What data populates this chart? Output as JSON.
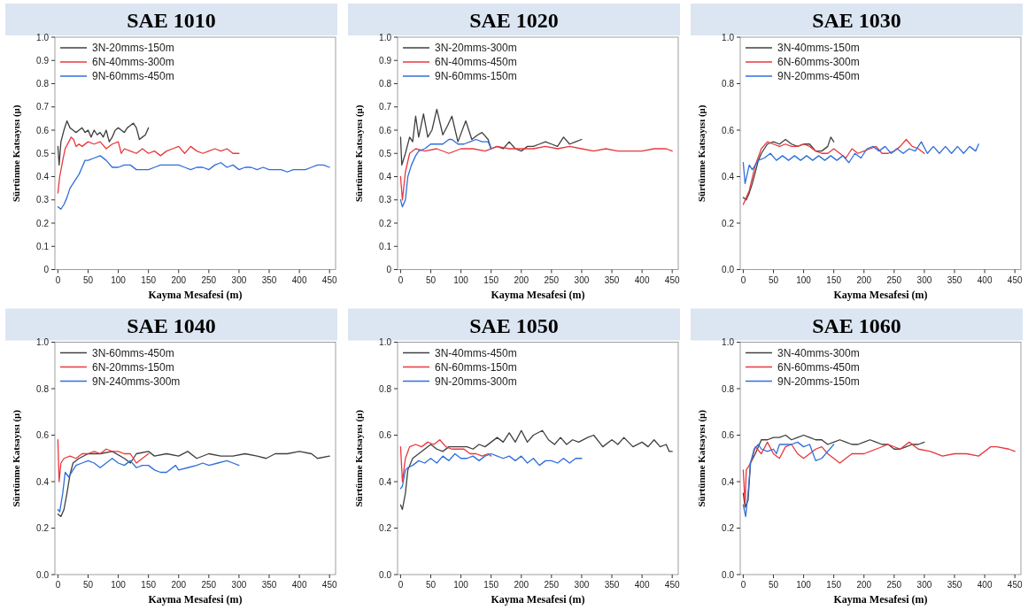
{
  "chart_data": [
    {
      "type": "line",
      "title": "SAE 1010",
      "xlabel": "Kayma Mesafesi (m)",
      "ylabel": "Sürtünme Katsayısı (μ)",
      "xlim": [
        -5,
        460
      ],
      "ylim": [
        0,
        1
      ],
      "xticks": [
        0,
        50,
        100,
        150,
        200,
        250,
        300,
        350,
        400,
        450
      ],
      "yticks": [
        0,
        {
          "value": 0.1,
          "label": "0.1"
        },
        {
          "value": 0.2,
          "label": "0.2"
        },
        {
          "value": 0.3,
          "label": "0.3"
        },
        {
          "value": 0.4,
          "label": "0.4"
        },
        {
          "value": 0.5,
          "label": "0.5"
        },
        {
          "value": 0.6,
          "label": "0.6"
        },
        {
          "value": 0.7,
          "label": "0.7"
        },
        {
          "value": 0.8,
          "label": "0.8"
        },
        {
          "value": 0.9,
          "label": "0.9"
        },
        {
          "value": 1,
          "label": "1.0"
        }
      ],
      "legend": "top left",
      "grid": false,
      "series": [
        {
          "name": "3N-20mms-150m",
          "color": "#404040",
          "x": [
            0,
            2,
            5,
            10,
            15,
            20,
            25,
            30,
            35,
            40,
            45,
            50,
            55,
            60,
            65,
            70,
            75,
            80,
            85,
            90,
            95,
            100,
            105,
            110,
            115,
            120,
            125,
            130,
            135,
            140,
            145,
            150
          ],
          "values": [
            0.53,
            0.45,
            0.55,
            0.6,
            0.64,
            0.61,
            0.6,
            0.59,
            0.6,
            0.61,
            0.59,
            0.6,
            0.57,
            0.6,
            0.58,
            0.59,
            0.57,
            0.6,
            0.55,
            0.57,
            0.6,
            0.61,
            0.6,
            0.59,
            0.61,
            0.62,
            0.63,
            0.61,
            0.56,
            0.57,
            0.58,
            0.61
          ]
        },
        {
          "name": "6N-40mms-300m",
          "color": "#e8383d",
          "x": [
            0,
            3,
            8,
            12,
            18,
            22,
            26,
            30,
            35,
            40,
            50,
            60,
            70,
            80,
            90,
            100,
            105,
            110,
            120,
            130,
            140,
            150,
            160,
            170,
            180,
            190,
            200,
            210,
            220,
            230,
            240,
            250,
            260,
            270,
            280,
            290,
            300
          ],
          "values": [
            0.33,
            0.4,
            0.47,
            0.52,
            0.55,
            0.57,
            0.56,
            0.53,
            0.54,
            0.53,
            0.55,
            0.54,
            0.55,
            0.52,
            0.54,
            0.55,
            0.5,
            0.52,
            0.51,
            0.5,
            0.52,
            0.5,
            0.51,
            0.49,
            0.51,
            0.52,
            0.53,
            0.5,
            0.53,
            0.51,
            0.5,
            0.51,
            0.52,
            0.51,
            0.52,
            0.5,
            0.5
          ]
        },
        {
          "name": "9N-60mms-450m",
          "color": "#2f6fdb",
          "x": [
            0,
            5,
            10,
            15,
            20,
            25,
            30,
            35,
            40,
            45,
            50,
            60,
            70,
            80,
            90,
            100,
            110,
            120,
            130,
            140,
            150,
            160,
            170,
            180,
            190,
            200,
            210,
            220,
            230,
            240,
            250,
            260,
            270,
            280,
            290,
            300,
            310,
            320,
            330,
            340,
            350,
            360,
            370,
            380,
            390,
            400,
            410,
            420,
            430,
            440,
            450
          ],
          "values": [
            0.27,
            0.26,
            0.28,
            0.31,
            0.35,
            0.37,
            0.39,
            0.41,
            0.44,
            0.47,
            0.47,
            0.48,
            0.49,
            0.47,
            0.44,
            0.44,
            0.45,
            0.45,
            0.43,
            0.43,
            0.43,
            0.44,
            0.45,
            0.45,
            0.45,
            0.45,
            0.44,
            0.43,
            0.44,
            0.44,
            0.43,
            0.45,
            0.46,
            0.44,
            0.45,
            0.43,
            0.44,
            0.44,
            0.43,
            0.44,
            0.43,
            0.43,
            0.43,
            0.42,
            0.43,
            0.43,
            0.43,
            0.44,
            0.45,
            0.45,
            0.44
          ]
        }
      ]
    },
    {
      "type": "line",
      "title": "SAE 1020",
      "xlabel": "Kayma Mesafesi (m)",
      "ylabel": "Sürtünme Katsayısı (μ)",
      "xlim": [
        -5,
        460
      ],
      "ylim": [
        0,
        1
      ],
      "xticks": [
        0,
        50,
        100,
        150,
        200,
        250,
        300,
        350,
        400,
        450
      ],
      "yticks": [
        0,
        {
          "value": 0.1,
          "label": "0.1"
        },
        {
          "value": 0.2,
          "label": "0.2"
        },
        {
          "value": 0.3,
          "label": "0.3"
        },
        {
          "value": 0.4,
          "label": "0.4"
        },
        {
          "value": 0.5,
          "label": "0.5"
        },
        {
          "value": 0.6,
          "label": "0.6"
        },
        {
          "value": 0.7,
          "label": "0.7"
        },
        {
          "value": 0.8,
          "label": "0.8"
        },
        {
          "value": 0.9,
          "label": "0.9"
        },
        {
          "value": 1,
          "label": "1.0"
        }
      ],
      "legend": "top left",
      "grid": false,
      "series": [
        {
          "name": "3N-20mms-300m",
          "color": "#404040",
          "x": [
            0,
            2,
            8,
            15,
            20,
            25,
            30,
            38,
            45,
            52,
            60,
            70,
            78,
            85,
            95,
            108,
            118,
            128,
            135,
            145,
            150,
            160,
            170,
            180,
            190,
            200,
            210,
            220,
            230,
            240,
            250,
            260,
            270,
            280,
            290,
            300
          ],
          "values": [
            0.57,
            0.45,
            0.5,
            0.57,
            0.55,
            0.66,
            0.57,
            0.67,
            0.57,
            0.6,
            0.69,
            0.58,
            0.62,
            0.66,
            0.55,
            0.64,
            0.56,
            0.58,
            0.59,
            0.56,
            0.52,
            0.53,
            0.52,
            0.55,
            0.52,
            0.51,
            0.53,
            0.53,
            0.54,
            0.55,
            0.54,
            0.53,
            0.57,
            0.54,
            0.55,
            0.56
          ]
        },
        {
          "name": "6N-40mms-450m",
          "color": "#e8383d",
          "x": [
            0,
            3,
            8,
            15,
            25,
            40,
            60,
            80,
            100,
            120,
            140,
            160,
            180,
            200,
            220,
            240,
            260,
            280,
            300,
            320,
            340,
            360,
            380,
            400,
            420,
            440,
            450
          ],
          "values": [
            0.4,
            0.3,
            0.42,
            0.5,
            0.52,
            0.51,
            0.52,
            0.5,
            0.52,
            0.52,
            0.51,
            0.53,
            0.52,
            0.52,
            0.52,
            0.53,
            0.52,
            0.53,
            0.52,
            0.51,
            0.52,
            0.51,
            0.51,
            0.51,
            0.52,
            0.52,
            0.51
          ]
        },
        {
          "name": "9N-60mms-150m",
          "color": "#2f6fdb",
          "x": [
            0,
            3,
            8,
            12,
            18,
            25,
            30,
            40,
            50,
            60,
            70,
            80,
            85,
            95,
            105,
            115,
            125,
            135,
            145,
            150
          ],
          "values": [
            0.3,
            0.27,
            0.3,
            0.4,
            0.45,
            0.49,
            0.51,
            0.52,
            0.54,
            0.54,
            0.54,
            0.56,
            0.56,
            0.54,
            0.54,
            0.55,
            0.56,
            0.55,
            0.55,
            0.52
          ]
        }
      ]
    },
    {
      "type": "line",
      "title": "SAE 1030",
      "xlabel": "Kayma Mesafesi (m)",
      "ylabel": "Sürtünme Katsayısı (μ)",
      "xlim": [
        -5,
        460
      ],
      "ylim": [
        0,
        1
      ],
      "xticks": [
        0,
        50,
        100,
        150,
        200,
        250,
        300,
        350,
        400,
        450
      ],
      "yticks": [
        {
          "value": 0,
          "label": "0.0"
        },
        {
          "value": 0.2,
          "label": "0.2"
        },
        {
          "value": 0.4,
          "label": "0.4"
        },
        {
          "value": 0.6,
          "label": "0.6"
        },
        {
          "value": 0.8,
          "label": "0.8"
        },
        {
          "value": 1,
          "label": "1.0"
        }
      ],
      "legend": "top left",
      "grid": false,
      "series": [
        {
          "name": "3N-40mms-150m",
          "color": "#404040",
          "x": [
            0,
            5,
            10,
            15,
            20,
            25,
            30,
            40,
            50,
            60,
            70,
            80,
            90,
            100,
            110,
            120,
            130,
            140,
            145,
            150
          ],
          "values": [
            0.31,
            0.3,
            0.33,
            0.37,
            0.42,
            0.47,
            0.5,
            0.54,
            0.55,
            0.54,
            0.56,
            0.54,
            0.53,
            0.54,
            0.54,
            0.51,
            0.51,
            0.53,
            0.57,
            0.55
          ]
        },
        {
          "name": "6N-60mms-300m",
          "color": "#e8383d",
          "x": [
            0,
            5,
            10,
            20,
            30,
            40,
            50,
            60,
            70,
            80,
            90,
            100,
            110,
            120,
            130,
            140,
            150,
            160,
            170,
            180,
            190,
            200,
            210,
            220,
            230,
            240,
            250,
            260,
            270,
            280,
            290,
            300
          ],
          "values": [
            0.28,
            0.31,
            0.34,
            0.45,
            0.52,
            0.55,
            0.54,
            0.53,
            0.54,
            0.53,
            0.53,
            0.54,
            0.53,
            0.51,
            0.5,
            0.5,
            0.52,
            0.5,
            0.48,
            0.52,
            0.5,
            0.51,
            0.52,
            0.53,
            0.5,
            0.5,
            0.51,
            0.53,
            0.56,
            0.53,
            0.52,
            0.5
          ]
        },
        {
          "name": "9N-20mms-450m",
          "color": "#2f6fdb",
          "x": [
            0,
            3,
            10,
            15,
            25,
            35,
            45,
            55,
            65,
            75,
            85,
            95,
            105,
            115,
            125,
            135,
            145,
            155,
            165,
            175,
            185,
            195,
            205,
            215,
            225,
            235,
            245,
            255,
            265,
            275,
            285,
            295,
            305,
            315,
            325,
            335,
            345,
            355,
            365,
            375,
            385,
            390
          ],
          "values": [
            0.46,
            0.37,
            0.45,
            0.43,
            0.47,
            0.48,
            0.5,
            0.47,
            0.49,
            0.47,
            0.49,
            0.47,
            0.49,
            0.47,
            0.49,
            0.47,
            0.49,
            0.47,
            0.49,
            0.46,
            0.5,
            0.48,
            0.52,
            0.53,
            0.51,
            0.53,
            0.5,
            0.52,
            0.5,
            0.52,
            0.51,
            0.55,
            0.5,
            0.53,
            0.5,
            0.53,
            0.5,
            0.53,
            0.5,
            0.53,
            0.51,
            0.54
          ]
        }
      ]
    },
    {
      "type": "line",
      "title": "SAE 1040",
      "xlabel": "Kayma Mesafesi (m)",
      "ylabel": "Sürtünme Katsayısı (μ)",
      "xlim": [
        -5,
        460
      ],
      "ylim": [
        0,
        1
      ],
      "xticks": [
        0,
        50,
        100,
        150,
        200,
        250,
        300,
        350,
        400,
        450
      ],
      "yticks": [
        {
          "value": 0,
          "label": "0.0"
        },
        {
          "value": 0.2,
          "label": "0.2"
        },
        {
          "value": 0.4,
          "label": "0.4"
        },
        {
          "value": 0.6,
          "label": "0.6"
        },
        {
          "value": 0.8,
          "label": "0.8"
        },
        {
          "value": 1,
          "label": "1.0"
        }
      ],
      "legend": "top left",
      "grid": false,
      "series": [
        {
          "name": "3N-60mms-450m",
          "color": "#404040",
          "x": [
            0,
            5,
            10,
            15,
            20,
            25,
            35,
            50,
            70,
            90,
            110,
            120,
            130,
            150,
            160,
            180,
            200,
            215,
            230,
            250,
            270,
            290,
            310,
            330,
            345,
            360,
            380,
            400,
            420,
            430,
            450
          ],
          "values": [
            0.26,
            0.25,
            0.28,
            0.35,
            0.43,
            0.48,
            0.5,
            0.52,
            0.52,
            0.53,
            0.5,
            0.48,
            0.52,
            0.53,
            0.51,
            0.52,
            0.51,
            0.53,
            0.5,
            0.52,
            0.51,
            0.51,
            0.52,
            0.51,
            0.5,
            0.52,
            0.52,
            0.53,
            0.52,
            0.5,
            0.51
          ]
        },
        {
          "name": "6N-20mms-150m",
          "color": "#e8383d",
          "x": [
            0,
            2,
            5,
            10,
            20,
            30,
            40,
            50,
            60,
            70,
            80,
            90,
            100,
            110,
            120,
            130,
            140,
            150
          ],
          "values": [
            0.58,
            0.4,
            0.48,
            0.5,
            0.51,
            0.5,
            0.52,
            0.52,
            0.53,
            0.52,
            0.54,
            0.53,
            0.53,
            0.52,
            0.52,
            0.48,
            0.5,
            0.52
          ]
        },
        {
          "name": "9N-240mms-300m",
          "color": "#2f6fdb",
          "x": [
            0,
            3,
            8,
            12,
            18,
            25,
            30,
            40,
            50,
            60,
            70,
            80,
            90,
            100,
            110,
            120,
            130,
            140,
            150,
            160,
            170,
            180,
            195,
            200,
            215,
            230,
            240,
            250,
            265,
            280,
            290,
            300
          ],
          "values": [
            0.28,
            0.27,
            0.35,
            0.44,
            0.42,
            0.45,
            0.47,
            0.48,
            0.49,
            0.48,
            0.46,
            0.48,
            0.5,
            0.48,
            0.47,
            0.49,
            0.46,
            0.47,
            0.47,
            0.45,
            0.44,
            0.44,
            0.47,
            0.45,
            0.46,
            0.47,
            0.48,
            0.47,
            0.48,
            0.49,
            0.48,
            0.47
          ]
        }
      ]
    },
    {
      "type": "line",
      "title": "SAE 1050",
      "xlabel": "Kayma Mesafesi (m)",
      "ylabel": "Sürtünme Katsayısı (μ)",
      "xlim": [
        -5,
        460
      ],
      "ylim": [
        0,
        1
      ],
      "xticks": [
        0,
        50,
        100,
        150,
        200,
        250,
        300,
        350,
        400,
        450
      ],
      "yticks": [
        {
          "value": 0,
          "label": "0.0"
        },
        {
          "value": 0.2,
          "label": "0.2"
        },
        {
          "value": 0.4,
          "label": "0.4"
        },
        {
          "value": 0.6,
          "label": "0.6"
        },
        {
          "value": 0.8,
          "label": "0.8"
        },
        {
          "value": 1,
          "label": "1.0"
        }
      ],
      "legend": "top left",
      "grid": false,
      "series": [
        {
          "name": "3N-40mms-450m",
          "color": "#404040",
          "x": [
            0,
            3,
            8,
            12,
            20,
            30,
            40,
            50,
            60,
            70,
            80,
            90,
            100,
            110,
            120,
            130,
            140,
            150,
            160,
            170,
            180,
            190,
            200,
            210,
            220,
            235,
            245,
            255,
            265,
            275,
            285,
            295,
            310,
            320,
            335,
            350,
            360,
            370,
            385,
            400,
            410,
            420,
            430,
            440,
            445,
            450
          ],
          "values": [
            0.3,
            0.28,
            0.35,
            0.45,
            0.5,
            0.52,
            0.54,
            0.56,
            0.54,
            0.53,
            0.55,
            0.55,
            0.55,
            0.55,
            0.54,
            0.56,
            0.55,
            0.57,
            0.59,
            0.57,
            0.61,
            0.57,
            0.62,
            0.57,
            0.6,
            0.62,
            0.58,
            0.56,
            0.59,
            0.56,
            0.58,
            0.57,
            0.59,
            0.6,
            0.55,
            0.58,
            0.56,
            0.59,
            0.55,
            0.57,
            0.55,
            0.58,
            0.55,
            0.56,
            0.53,
            0.53
          ]
        },
        {
          "name": "6N-60mms-150m",
          "color": "#e8383d",
          "x": [
            0,
            3,
            8,
            15,
            25,
            35,
            45,
            55,
            65,
            75,
            85,
            95,
            105,
            115,
            125,
            135,
            145,
            150
          ],
          "values": [
            0.55,
            0.4,
            0.5,
            0.55,
            0.56,
            0.55,
            0.57,
            0.56,
            0.58,
            0.55,
            0.54,
            0.54,
            0.54,
            0.52,
            0.52,
            0.51,
            0.52,
            0.51
          ]
        },
        {
          "name": "9N-20mms-300m",
          "color": "#2f6fdb",
          "x": [
            0,
            3,
            8,
            12,
            20,
            30,
            40,
            50,
            60,
            70,
            80,
            90,
            100,
            110,
            120,
            130,
            140,
            150,
            160,
            170,
            180,
            190,
            200,
            210,
            220,
            230,
            240,
            250,
            260,
            270,
            280,
            290,
            300
          ],
          "values": [
            0.37,
            0.38,
            0.45,
            0.46,
            0.47,
            0.49,
            0.48,
            0.5,
            0.48,
            0.51,
            0.49,
            0.52,
            0.5,
            0.5,
            0.51,
            0.49,
            0.51,
            0.52,
            0.51,
            0.5,
            0.51,
            0.49,
            0.51,
            0.48,
            0.5,
            0.47,
            0.49,
            0.49,
            0.48,
            0.5,
            0.48,
            0.5,
            0.5
          ]
        }
      ]
    },
    {
      "type": "line",
      "title": "SAE 1060",
      "xlabel": "Kayma Mesafesi (m)",
      "ylabel": "Sürtünme Katsayısı (μ)",
      "xlim": [
        -5,
        460
      ],
      "ylim": [
        0,
        1
      ],
      "xticks": [
        0,
        50,
        100,
        150,
        200,
        250,
        300,
        350,
        400,
        450
      ],
      "yticks": [
        {
          "value": 0,
          "label": "0.0"
        },
        {
          "value": 0.2,
          "label": "0.2"
        },
        {
          "value": 0.4,
          "label": "0.4"
        },
        {
          "value": 0.6,
          "label": "0.6"
        },
        {
          "value": 0.8,
          "label": "0.8"
        },
        {
          "value": 1,
          "label": "1.0"
        }
      ],
      "legend": "top left",
      "grid": false,
      "series": [
        {
          "name": "3N-40mms-300m",
          "color": "#404040",
          "x": [
            0,
            3,
            8,
            12,
            20,
            30,
            40,
            50,
            60,
            70,
            80,
            90,
            100,
            110,
            120,
            130,
            140,
            150,
            160,
            170,
            180,
            190,
            200,
            210,
            220,
            230,
            240,
            250,
            260,
            270,
            280,
            290,
            300
          ],
          "values": [
            0.35,
            0.29,
            0.32,
            0.48,
            0.52,
            0.58,
            0.58,
            0.59,
            0.59,
            0.6,
            0.58,
            0.59,
            0.6,
            0.59,
            0.58,
            0.58,
            0.56,
            0.57,
            0.58,
            0.57,
            0.56,
            0.56,
            0.57,
            0.58,
            0.57,
            0.56,
            0.56,
            0.54,
            0.54,
            0.55,
            0.56,
            0.56,
            0.57
          ]
        },
        {
          "name": "6N-60mms-450m",
          "color": "#e8383d",
          "x": [
            0,
            3,
            5,
            10,
            15,
            20,
            30,
            40,
            50,
            60,
            70,
            80,
            90,
            100,
            110,
            120,
            130,
            140,
            150,
            160,
            170,
            180,
            200,
            220,
            240,
            260,
            275,
            290,
            310,
            330,
            350,
            370,
            390,
            410,
            420,
            440,
            450
          ],
          "values": [
            0.45,
            0.3,
            0.45,
            0.47,
            0.5,
            0.55,
            0.52,
            0.57,
            0.52,
            0.5,
            0.55,
            0.56,
            0.52,
            0.5,
            0.52,
            0.54,
            0.55,
            0.52,
            0.5,
            0.48,
            0.5,
            0.52,
            0.52,
            0.54,
            0.56,
            0.54,
            0.57,
            0.54,
            0.53,
            0.51,
            0.52,
            0.52,
            0.51,
            0.55,
            0.55,
            0.54,
            0.53
          ]
        },
        {
          "name": "9N-20mms-150m",
          "color": "#2f6fdb",
          "x": [
            0,
            4,
            8,
            12,
            18,
            25,
            30,
            40,
            50,
            55,
            60,
            70,
            80,
            90,
            100,
            110,
            120,
            130,
            140,
            150
          ],
          "values": [
            0.3,
            0.25,
            0.35,
            0.48,
            0.54,
            0.56,
            0.54,
            0.53,
            0.54,
            0.52,
            0.56,
            0.56,
            0.56,
            0.57,
            0.55,
            0.56,
            0.49,
            0.5,
            0.53,
            0.56
          ]
        }
      ]
    }
  ]
}
